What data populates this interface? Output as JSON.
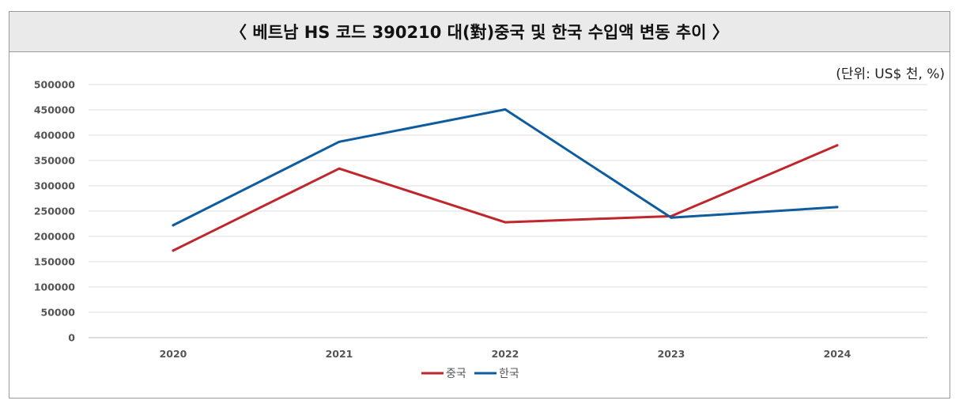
{
  "chart_data": {
    "type": "line",
    "title": "〈 베트남 HS 코드 390210 대(對)중국 및 한국 수입액 변동 추이 〉",
    "unit": "(단위: US$ 천, %)",
    "categories": [
      "2020",
      "2021",
      "2022",
      "2023",
      "2024"
    ],
    "ylim": [
      0,
      500000
    ],
    "yticks": [
      "0",
      "50000",
      "100000",
      "150000",
      "200000",
      "250000",
      "300000",
      "350000",
      "400000",
      "450000",
      "500000"
    ],
    "grid": true,
    "legend_position": "bottom",
    "series": [
      {
        "name": "중국",
        "color": "#c0272d",
        "values": [
          172000,
          334000,
          228000,
          240000,
          380000
        ]
      },
      {
        "name": "한국",
        "color": "#0e5c9e",
        "values": [
          222000,
          387000,
          451000,
          237000,
          258000
        ]
      }
    ]
  }
}
